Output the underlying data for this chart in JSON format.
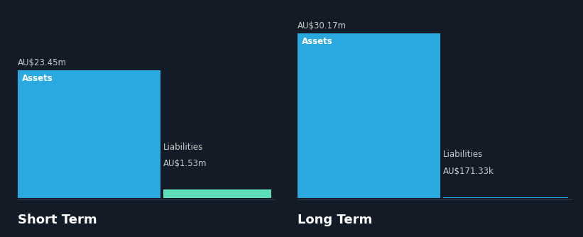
{
  "background_color": "#131b26",
  "short_term": {
    "label": "Short Term",
    "assets_value": 23.45,
    "assets_label": "Assets",
    "assets_value_text": "AU$23.45m",
    "assets_color": "#2aa8e0",
    "liabilities_value": 1.53,
    "liabilities_label": "Liabilities",
    "liabilities_value_text": "AU$1.53m",
    "liabilities_color": "#5dddb8"
  },
  "long_term": {
    "label": "Long Term",
    "assets_value": 30.17,
    "assets_label": "Assets",
    "assets_value_text": "AU$30.17m",
    "assets_color": "#2aa8e0",
    "liabilities_value": 0.17133,
    "liabilities_label": "Liabilities",
    "liabilities_value_text": "AU$171.33k",
    "liabilities_color": "#2aa8e0"
  },
  "max_value": 33.0,
  "text_color": "#ffffff",
  "label_color": "#cccccc",
  "section_label_fontsize": 13,
  "value_fontsize": 8.5,
  "bar_label_fontsize": 8.5,
  "bottom_line_color": "#2a3a4a"
}
